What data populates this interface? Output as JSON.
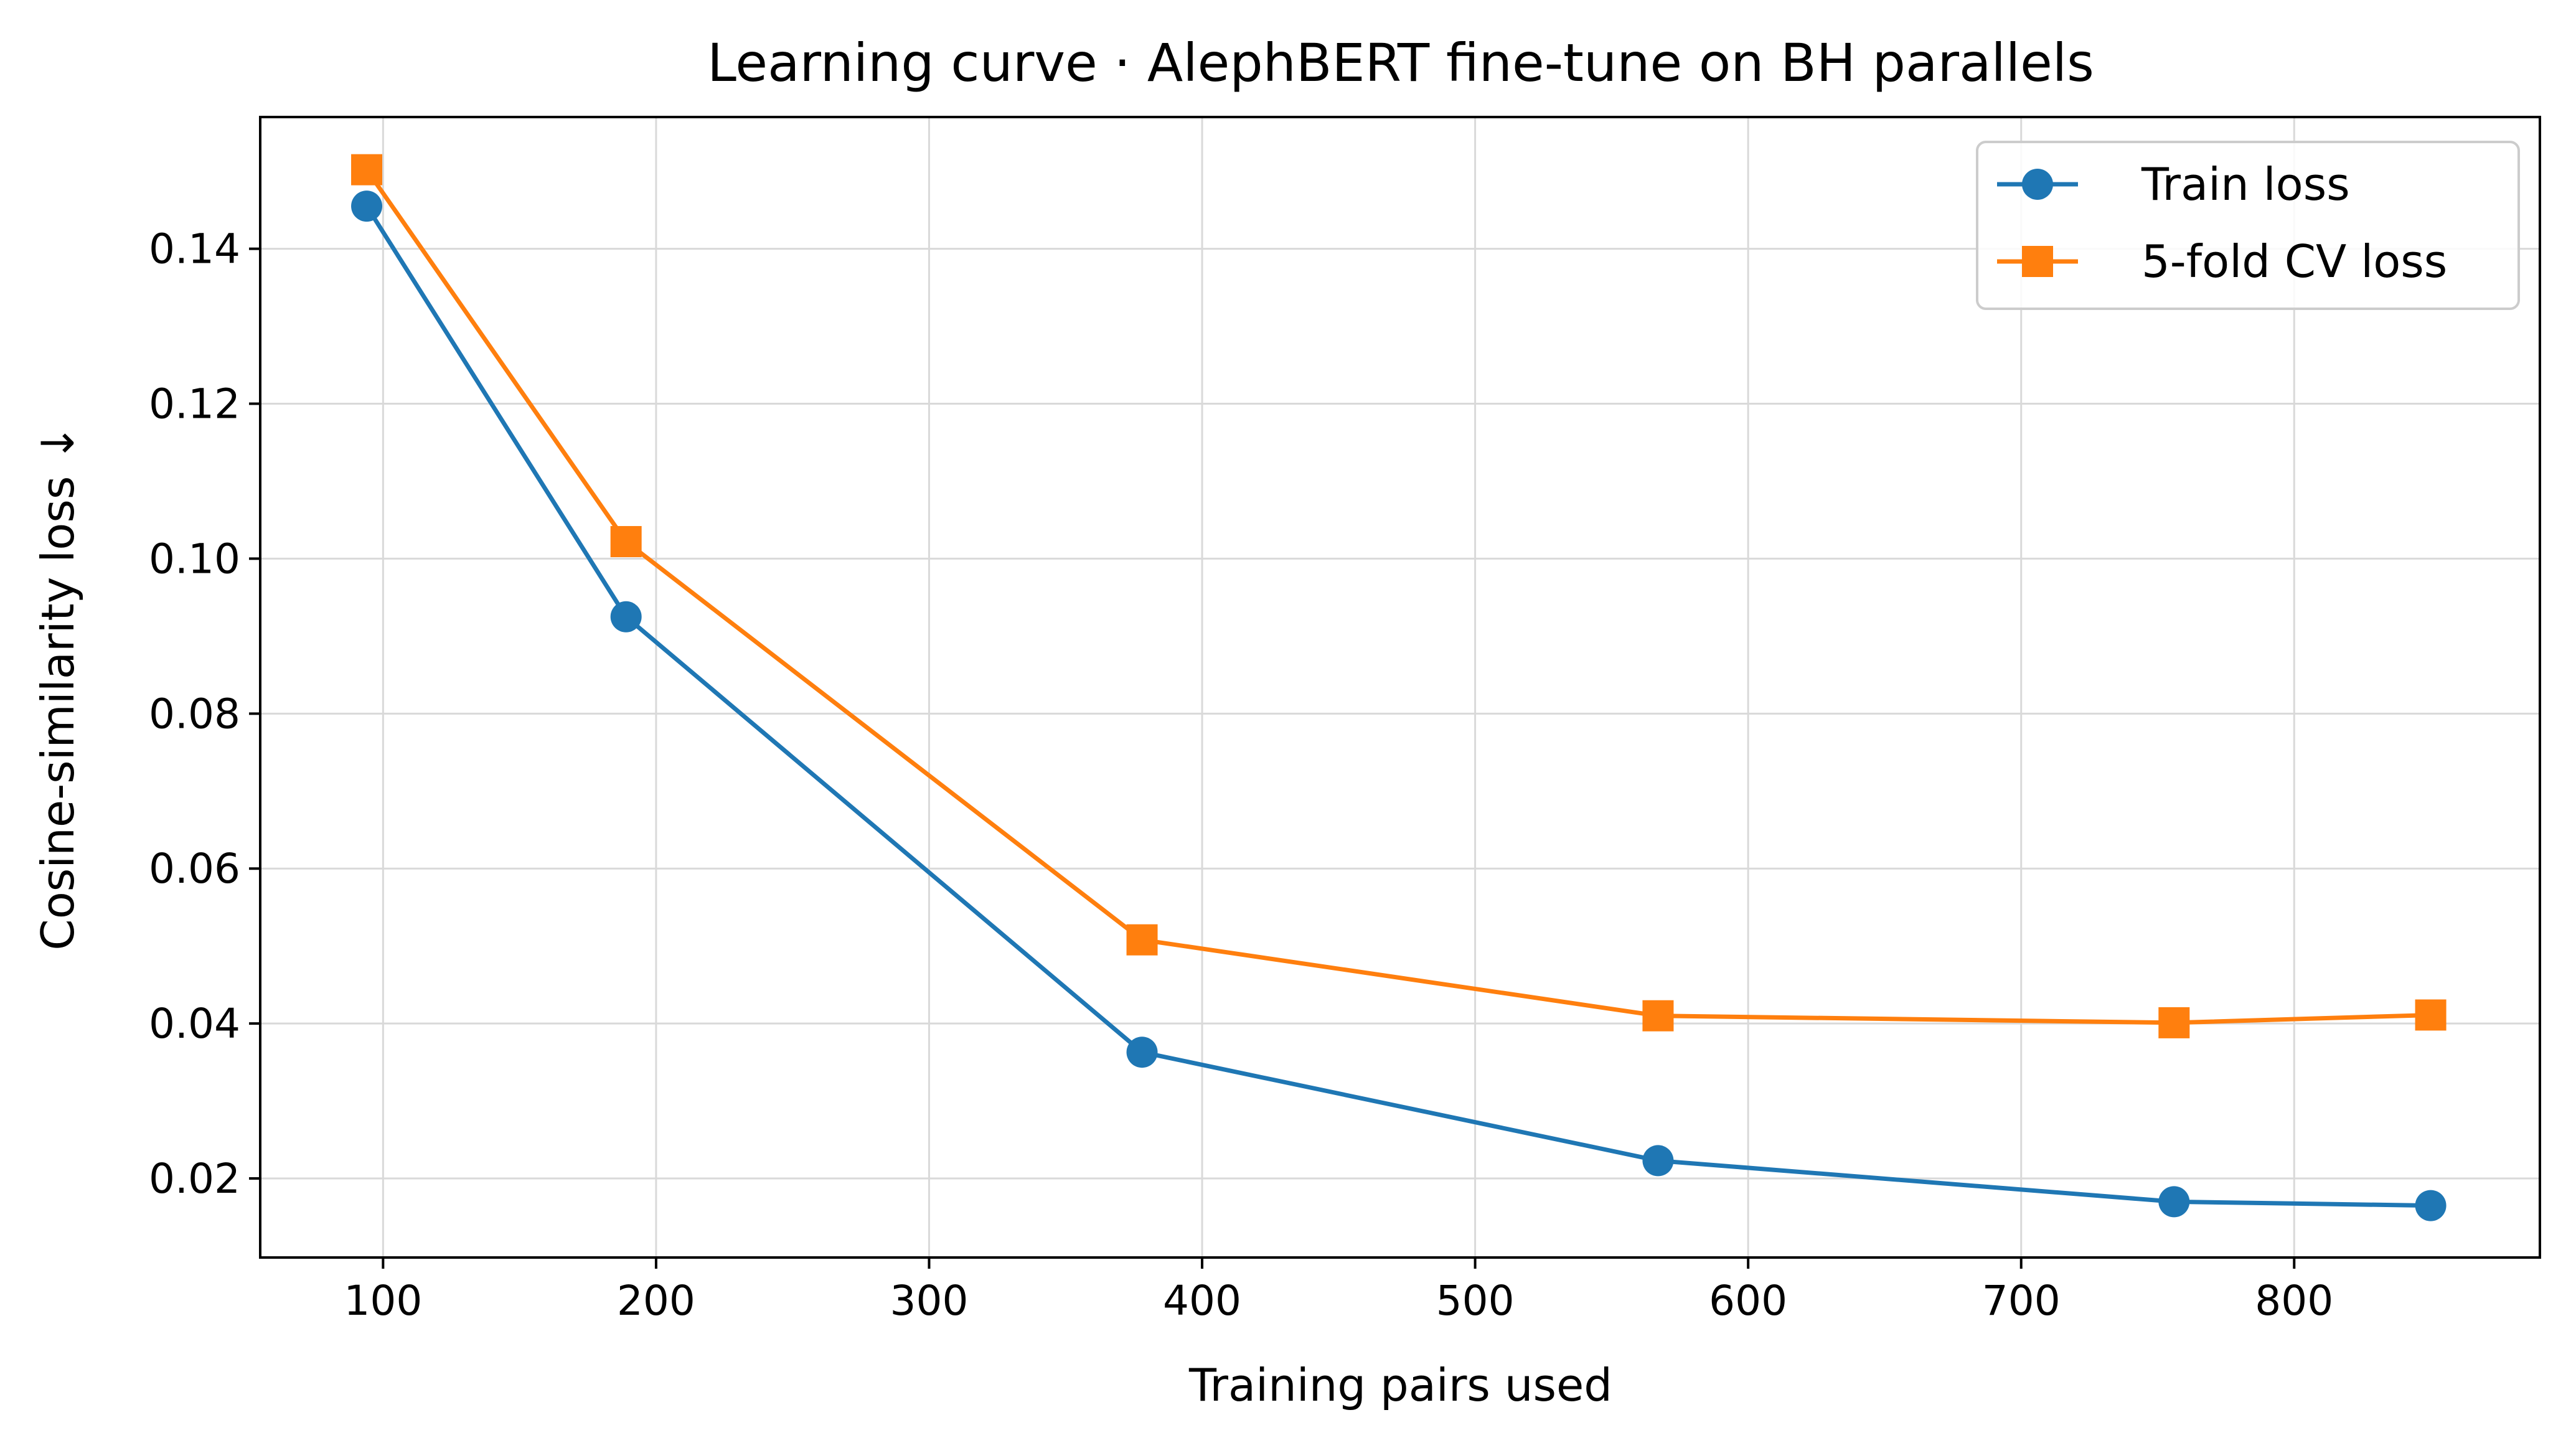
{
  "chart_data": {
    "type": "line",
    "title": "Learning curve · AlephBERT fine-tune on BH parallels",
    "xlabel": "Training pairs used",
    "ylabel": "Cosine-similarity loss ↓",
    "xlim": [
      55,
      890
    ],
    "ylim": [
      0.0098,
      0.157
    ],
    "xticks": [
      100,
      200,
      300,
      400,
      500,
      600,
      700,
      800
    ],
    "yticks": [
      0.02,
      0.04,
      0.06,
      0.08,
      0.1,
      0.12,
      0.14
    ],
    "ytick_labels": [
      "0.02",
      "0.04",
      "0.06",
      "0.08",
      "0.10",
      "0.12",
      "0.14"
    ],
    "xtick_labels": [
      "100",
      "200",
      "300",
      "400",
      "500",
      "600",
      "700",
      "800"
    ],
    "grid": true,
    "legend_position": "top-right",
    "x": [
      94,
      189,
      378,
      567,
      756,
      850
    ],
    "series": [
      {
        "name": "Train loss",
        "marker": "circle",
        "color": "#1f77b4",
        "values": [
          0.1455,
          0.0925,
          0.0363,
          0.0223,
          0.017,
          0.0165
        ]
      },
      {
        "name": "5-fold CV loss",
        "marker": "square",
        "color": "#ff7f0e",
        "values": [
          0.1502,
          0.1022,
          0.0508,
          0.041,
          0.0401,
          0.0411
        ]
      }
    ]
  }
}
